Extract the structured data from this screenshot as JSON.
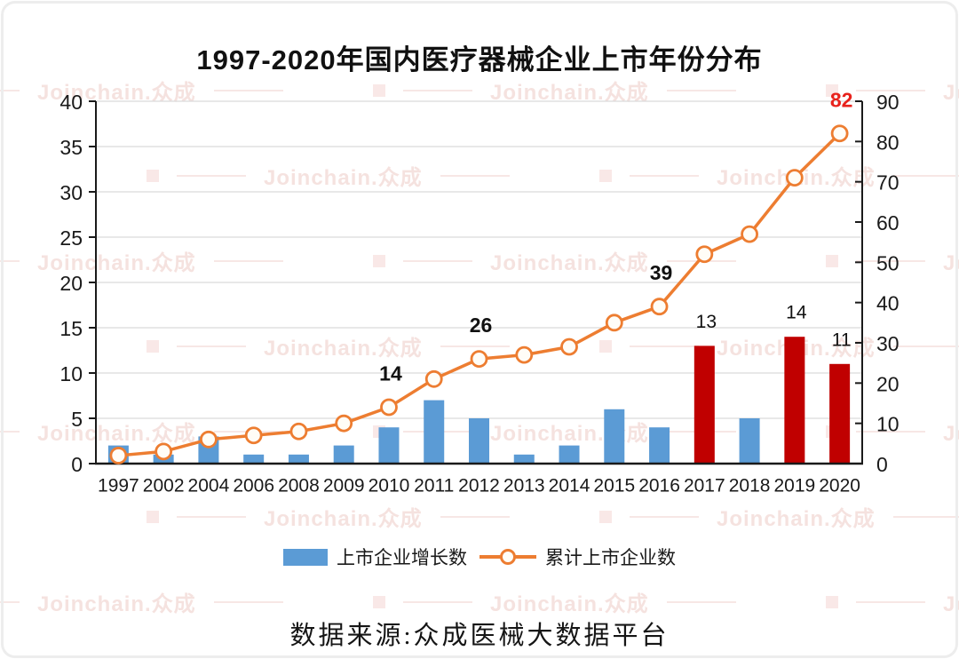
{
  "title": "1997-2020年国内医疗器械企业上市年份分布",
  "source": "数据来源:众成医械大数据平台",
  "watermark": {
    "text": "Joinchain.众成"
  },
  "legend": {
    "bar_label": "上市企业增长数",
    "line_label": "累计上市企业数"
  },
  "colors": {
    "bar_blue": "#5b9bd5",
    "bar_red": "#c00000",
    "line_orange": "#ed7d31",
    "marker_fill": "#fffdf7",
    "annotation_red": "#e8221c",
    "axis": "#1a1a1a",
    "grid": "#d9d9d9"
  },
  "chart_data": {
    "type": "bar",
    "subtype": "combo-bar-line",
    "title": "1997-2020年国内医疗器械企业上市年份分布",
    "categories": [
      "1997",
      "2002",
      "2004",
      "2006",
      "2008",
      "2009",
      "2010",
      "2011",
      "2012",
      "2013",
      "2014",
      "2015",
      "2016",
      "2017",
      "2018",
      "2019",
      "2020"
    ],
    "series": [
      {
        "name": "上市企业增长数",
        "type": "bar",
        "axis": "left",
        "values": [
          2,
          1,
          3,
          1,
          1,
          2,
          4,
          7,
          5,
          1,
          2,
          6,
          4,
          13,
          5,
          14,
          11
        ],
        "color": "#5b9bd5",
        "highlight_color": "#c00000",
        "highlight_categories": [
          "2017",
          "2019",
          "2020"
        ]
      },
      {
        "name": "累计上市企业数",
        "type": "line",
        "axis": "right",
        "values": [
          2,
          3,
          6,
          7,
          8,
          10,
          14,
          21,
          26,
          27,
          29,
          35,
          39,
          52,
          57,
          71,
          82
        ],
        "color": "#ed7d31",
        "marker_fill": "#fffdf7"
      }
    ],
    "annotations": [
      {
        "series": "line",
        "category": "2010",
        "text": "14",
        "bold": true,
        "color": "#111111"
      },
      {
        "series": "line",
        "category": "2012",
        "text": "26",
        "bold": true,
        "color": "#111111"
      },
      {
        "series": "line",
        "category": "2016",
        "text": "39",
        "bold": true,
        "color": "#111111"
      },
      {
        "series": "line",
        "category": "2020",
        "text": "82",
        "bold": true,
        "color": "#e8221c"
      },
      {
        "series": "bar",
        "category": "2017",
        "text": "13",
        "bold": false,
        "color": "#111111"
      },
      {
        "series": "bar",
        "category": "2019",
        "text": "14",
        "bold": false,
        "color": "#111111"
      },
      {
        "series": "bar",
        "category": "2020",
        "text": "11",
        "bold": false,
        "color": "#111111"
      }
    ],
    "left_axis": {
      "min": 0,
      "max": 40,
      "step": 5
    },
    "right_axis": {
      "min": 0,
      "max": 90,
      "step": 10
    },
    "grid": "horizontal",
    "legend_position": "bottom"
  }
}
